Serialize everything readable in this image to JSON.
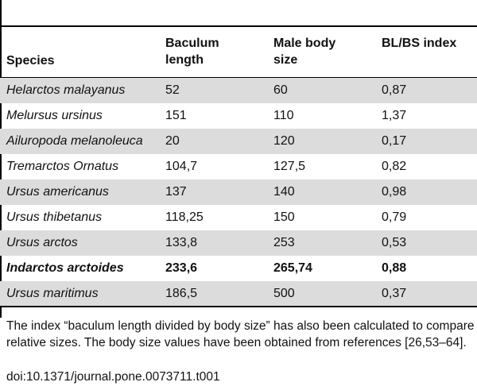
{
  "table": {
    "headers": {
      "species": "Species",
      "baculum_length": "Baculum length",
      "male_body_size": "Male body size",
      "index": "BL/BS index"
    },
    "rows": [
      {
        "species": "Helarctos malayanus",
        "baculum_length": "52",
        "male_body_size": "60",
        "index": "0,87"
      },
      {
        "species": "Melursus ursinus",
        "baculum_length": "151",
        "male_body_size": "110",
        "index": "1,37"
      },
      {
        "species": "Ailuropoda melanoleuca",
        "baculum_length": "20",
        "male_body_size": "120",
        "index": "0,17"
      },
      {
        "species": "Tremarctos Ornatus",
        "baculum_length": "104,7",
        "male_body_size": "127,5",
        "index": "0,82"
      },
      {
        "species": "Ursus americanus",
        "baculum_length": "137",
        "male_body_size": "140",
        "index": "0,98"
      },
      {
        "species": "Ursus thibetanus",
        "baculum_length": "118,25",
        "male_body_size": "150",
        "index": "0,79"
      },
      {
        "species": "Ursus arctos",
        "baculum_length": "133,8",
        "male_body_size": "253",
        "index": "0,53"
      },
      {
        "species": "Indarctos arctoides",
        "baculum_length": "233,6",
        "male_body_size": "265,74",
        "index": "0,88"
      },
      {
        "species": "Ursus maritimus",
        "baculum_length": "186,5",
        "male_body_size": "500",
        "index": "0,37"
      }
    ]
  },
  "footnote": "The index “baculum length divided by body size” has also been calculated to compare relative sizes. The body size values have been obtained from references [26,53–64].",
  "doi": "doi:10.1371/journal.pone.0073711.t001"
}
